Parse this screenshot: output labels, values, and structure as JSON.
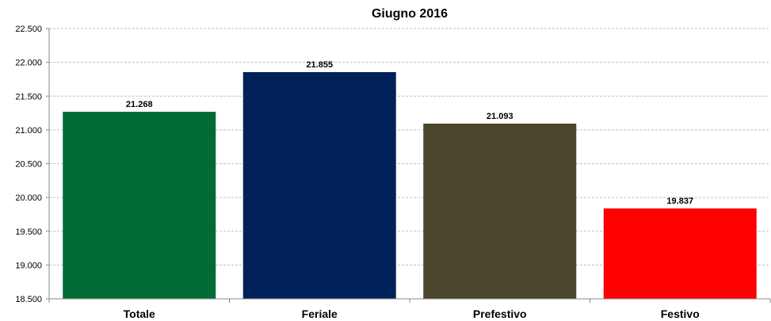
{
  "chart_data": {
    "type": "bar",
    "title": "Giugno 2016",
    "categories": [
      "Totale",
      "Feriale",
      "Prefestivo",
      "Festivo"
    ],
    "values": [
      21268,
      21855,
      21093,
      19837
    ],
    "value_labels": [
      "21.268",
      "21.855",
      "21.093",
      "19.837"
    ],
    "colors": [
      "#006b35",
      "#00215a",
      "#4a452b",
      "#ff0000"
    ],
    "ylim": [
      18500,
      22500
    ],
    "yticks": [
      18500,
      19000,
      19500,
      20000,
      20500,
      21000,
      21500,
      22000,
      22500
    ],
    "ytick_labels": [
      "18.500",
      "19.000",
      "19.500",
      "20.000",
      "20.500",
      "21.000",
      "21.500",
      "22.000",
      "22.500"
    ],
    "xlabel": "",
    "ylabel": "",
    "grid": true,
    "legend": "none"
  }
}
